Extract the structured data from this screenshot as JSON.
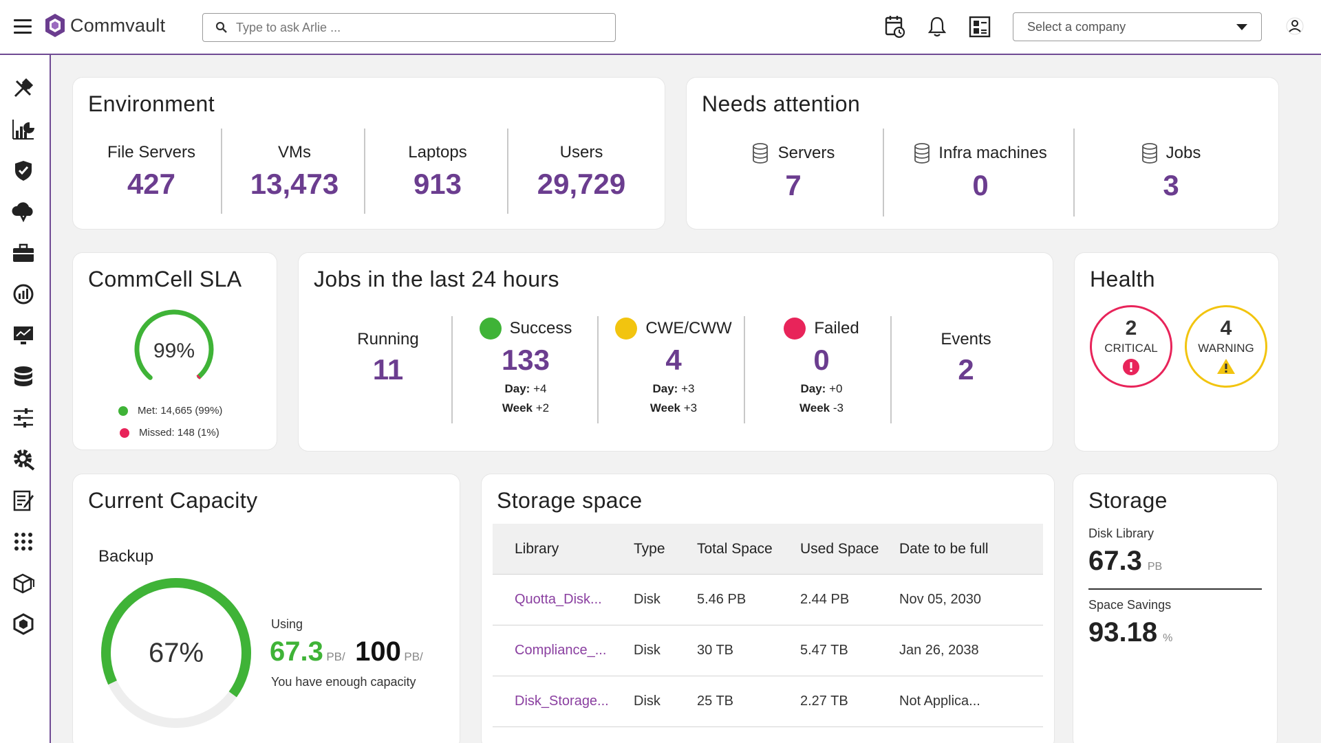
{
  "header": {
    "brand": "Commvault",
    "search_placeholder": "Type to ask Arlie ...",
    "company_select": "Select a company"
  },
  "sidebar": {
    "icons": [
      "tools-icon",
      "reports-icon",
      "shield-icon",
      "cloud-icon",
      "briefcase-icon",
      "gauge-icon",
      "monitor-icon",
      "database-icon",
      "sliders-icon",
      "gear-icon",
      "clipboard-icon",
      "apps-grid-icon",
      "cubes-icon",
      "hexagon-icon"
    ]
  },
  "environment": {
    "title": "Environment",
    "stats": [
      {
        "label": "File Servers",
        "value": "427"
      },
      {
        "label": "VMs",
        "value": "13,473"
      },
      {
        "label": "Laptops",
        "value": "913"
      },
      {
        "label": "Users",
        "value": "29,729"
      }
    ]
  },
  "attention": {
    "title": "Needs attention",
    "stats": [
      {
        "label": "Servers",
        "value": "7"
      },
      {
        "label": "Infra machines",
        "value": "0"
      },
      {
        "label": "Jobs",
        "value": "3"
      }
    ]
  },
  "sla": {
    "title": "CommCell SLA",
    "percent": "99%",
    "met_fraction": 0.99,
    "met": "Met: 14,665 (99%)",
    "missed": "Missed: 148 (1%)"
  },
  "jobs": {
    "title": "Jobs in the last 24 hours",
    "running": {
      "label": "Running",
      "value": "11"
    },
    "success": {
      "label": "Success",
      "value": "133",
      "day_label": "Day:",
      "day": "+4",
      "week_label": "Week",
      "week": "+2"
    },
    "cwe": {
      "label": "CWE/CWW",
      "value": "4",
      "day_label": "Day:",
      "day": "+3",
      "week_label": "Week",
      "week": "+3"
    },
    "failed": {
      "label": "Failed",
      "value": "0",
      "day_label": "Day:",
      "day": "+0",
      "week_label": "Week",
      "week": "-3"
    },
    "events": {
      "label": "Events",
      "value": "2"
    }
  },
  "health": {
    "title": "Health",
    "critical": {
      "count": "2",
      "label": "CRITICAL"
    },
    "warning": {
      "count": "4",
      "label": "WARNING"
    }
  },
  "capacity": {
    "title": "Current Capacity",
    "section": "Backup",
    "percent": "67%",
    "used_fraction": 0.67,
    "using_label": "Using",
    "used": "67.3",
    "used_unit": "PB/",
    "total": "100",
    "total_unit": "PB/",
    "note": "You have enough capacity"
  },
  "storage_space": {
    "title": "Storage space",
    "columns": [
      "Library",
      "Type",
      "Total Space",
      "Used Space",
      "Date to be full"
    ],
    "rows": [
      [
        "Quotta_Disk...",
        "Disk",
        "5.46 PB",
        "2.44 PB",
        "Nov 05, 2030"
      ],
      [
        "Compliance_...",
        "Disk",
        "30 TB",
        "5.47 TB",
        "Jan 26, 2038"
      ],
      [
        "Disk_Storage...",
        "Disk",
        "25 TB",
        "2.27 TB",
        "Not Applica..."
      ]
    ]
  },
  "storage": {
    "title": "Storage",
    "disk_label": "Disk Library",
    "disk_value": "67.3",
    "disk_unit": "PB",
    "savings_label": "Space Savings",
    "savings_value": "93.18",
    "savings_unit": "%"
  },
  "colors": {
    "accent": "#6b3d8f",
    "success": "#3fb337",
    "warning": "#f2c40f",
    "critical": "#e8245a"
  }
}
